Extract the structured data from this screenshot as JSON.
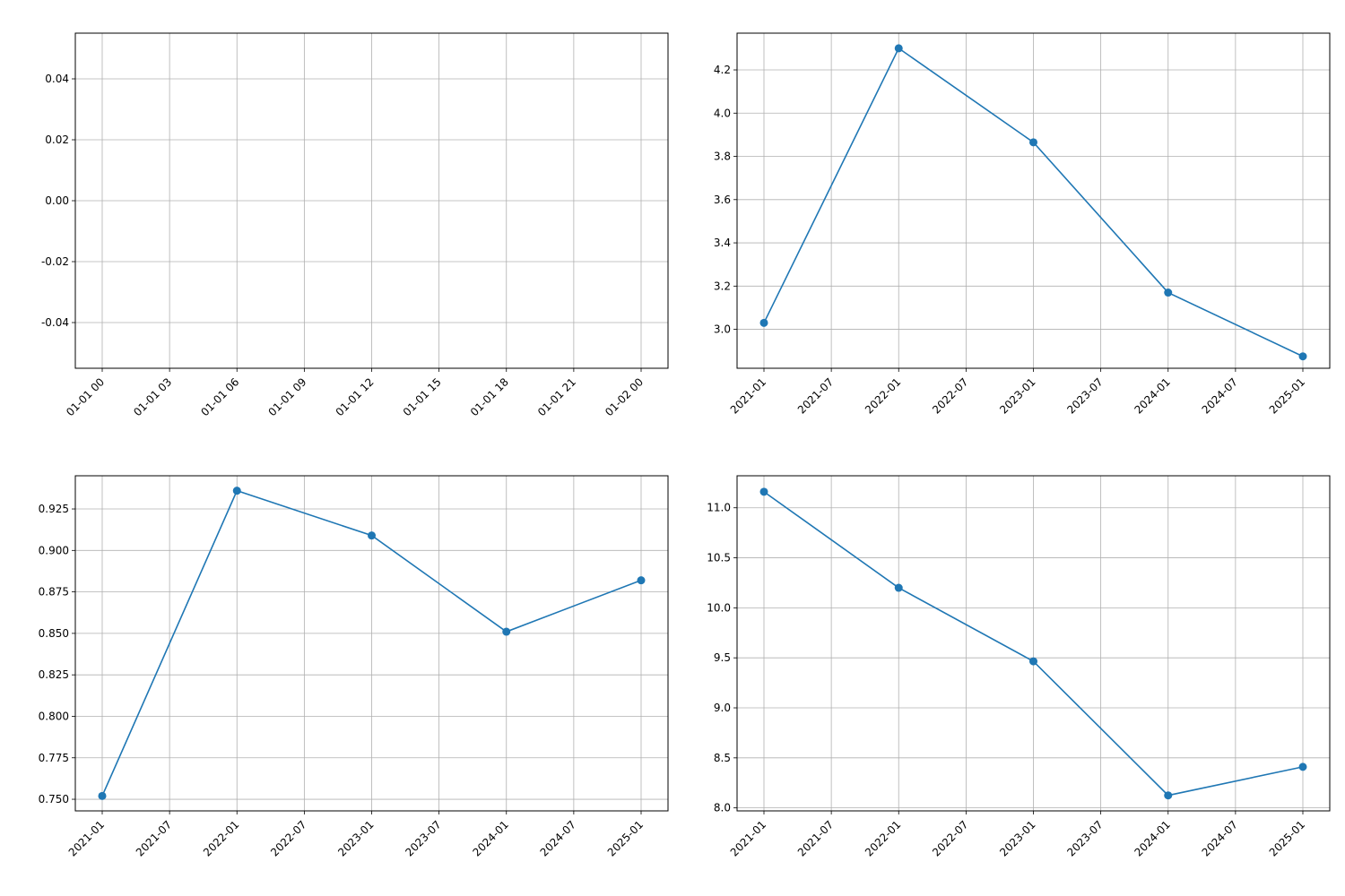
{
  "figure": {
    "background": "#ffffff"
  },
  "chart_data": [
    {
      "type": "line",
      "title": "",
      "xlabel": "",
      "ylabel": "",
      "x_ticks": [
        "01-01 00",
        "01-01 03",
        "01-01 06",
        "01-01 09",
        "01-01 12",
        "01-01 15",
        "01-01 18",
        "01-01 21",
        "01-02 00"
      ],
      "y_ticks": [
        "0.04",
        "0.02",
        "0.00",
        "-0.02",
        "-0.04"
      ],
      "ylim": [
        -0.055,
        0.055
      ],
      "grid": true,
      "series": []
    },
    {
      "type": "line",
      "title": "",
      "xlabel": "",
      "ylabel": "",
      "x_ticks": [
        "2021-01",
        "2021-07",
        "2022-01",
        "2022-07",
        "2023-01",
        "2023-07",
        "2024-01",
        "2024-07",
        "2025-01"
      ],
      "y_ticks": [
        "4.2",
        "4.0",
        "3.8",
        "3.6",
        "3.4",
        "3.2",
        "3.0"
      ],
      "ylim": [
        2.82,
        4.37
      ],
      "grid": true,
      "series": [
        {
          "color": "#1f77b4",
          "x": [
            "2021-01",
            "2022-01",
            "2023-01",
            "2024-01",
            "2025-01"
          ],
          "y": [
            3.03,
            4.3,
            3.865,
            3.17,
            2.875
          ]
        }
      ]
    },
    {
      "type": "line",
      "title": "",
      "xlabel": "",
      "ylabel": "",
      "x_ticks": [
        "2021-01",
        "2021-07",
        "2022-01",
        "2022-07",
        "2023-01",
        "2023-07",
        "2024-01",
        "2024-07",
        "2025-01"
      ],
      "y_ticks": [
        "0.925",
        "0.900",
        "0.875",
        "0.850",
        "0.825",
        "0.800",
        "0.775",
        "0.750"
      ],
      "ylim": [
        0.743,
        0.945
      ],
      "grid": true,
      "series": [
        {
          "color": "#1f77b4",
          "x": [
            "2021-01",
            "2022-01",
            "2023-01",
            "2024-01",
            "2025-01"
          ],
          "y": [
            0.752,
            0.936,
            0.909,
            0.851,
            0.882
          ]
        }
      ]
    },
    {
      "type": "line",
      "title": "",
      "xlabel": "",
      "ylabel": "",
      "x_ticks": [
        "2021-01",
        "2021-07",
        "2022-01",
        "2022-07",
        "2023-01",
        "2023-07",
        "2024-01",
        "2024-07",
        "2025-01"
      ],
      "y_ticks": [
        "11.0",
        "10.5",
        "10.0",
        "9.5",
        "9.0",
        "8.5",
        "8.0"
      ],
      "ylim": [
        7.97,
        11.32
      ],
      "grid": true,
      "series": [
        {
          "color": "#1f77b4",
          "x": [
            "2021-01",
            "2022-01",
            "2023-01",
            "2024-01",
            "2025-01"
          ],
          "y": [
            11.16,
            10.2,
            9.465,
            8.125,
            8.41
          ]
        }
      ]
    }
  ]
}
